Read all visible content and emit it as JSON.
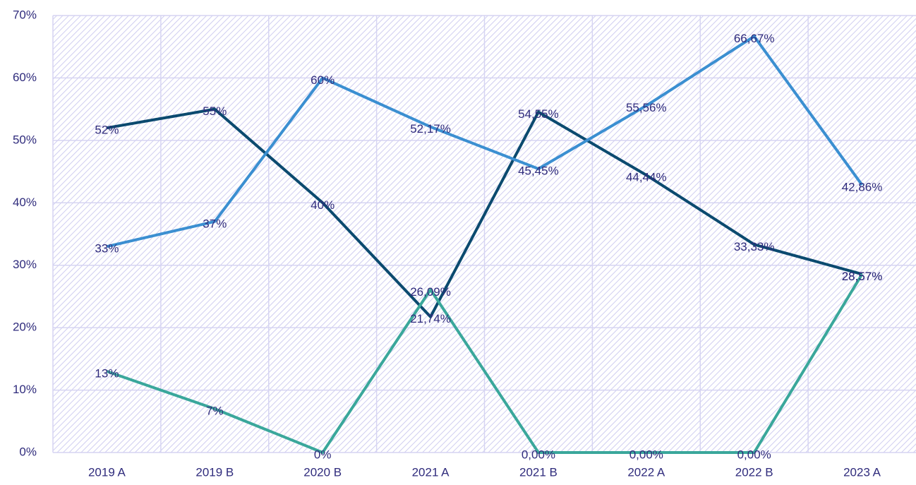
{
  "chart_data": {
    "type": "line",
    "categories": [
      "2019 A",
      "2019 B",
      "2020 B",
      "2021 A",
      "2021 B",
      "2022 A",
      "2022 B",
      "2023 A"
    ],
    "series": [
      {
        "color": "#0b4a6f",
        "values": [
          52,
          55,
          40,
          21.74,
          54.55,
          44.44,
          33.33,
          28.57
        ],
        "value_labels": [
          "52%",
          "55%",
          "40%",
          "21,74%",
          "54,55%",
          "44,44%",
          "33,33%",
          "28,57%"
        ]
      },
      {
        "color": "#3b8fd1",
        "values": [
          33,
          37,
          60,
          52.17,
          45.45,
          55.56,
          66.67,
          42.86
        ],
        "value_labels": [
          "33%",
          "37%",
          "60%",
          "52,17%",
          "45,45%",
          "55,56%",
          "66,67%",
          "42,86%"
        ]
      },
      {
        "color": "#3aa79b",
        "values": [
          13,
          7,
          0,
          26.09,
          0,
          0,
          0,
          28.57
        ],
        "value_labels": [
          "13%",
          "7%",
          "0%",
          "26,09%",
          "0,00%",
          "0,00%",
          "0,00%",
          "28,57%"
        ]
      }
    ],
    "ylim": [
      0,
      70
    ],
    "yticks": [
      {
        "value": 0,
        "label": "0%"
      },
      {
        "value": 10,
        "label": "10%"
      },
      {
        "value": 20,
        "label": "20%"
      },
      {
        "value": 30,
        "label": "30%"
      },
      {
        "value": 40,
        "label": "40%"
      },
      {
        "value": 50,
        "label": "50%"
      },
      {
        "value": 60,
        "label": "60%"
      },
      {
        "value": 70,
        "label": "70%"
      }
    ],
    "grid": true
  }
}
